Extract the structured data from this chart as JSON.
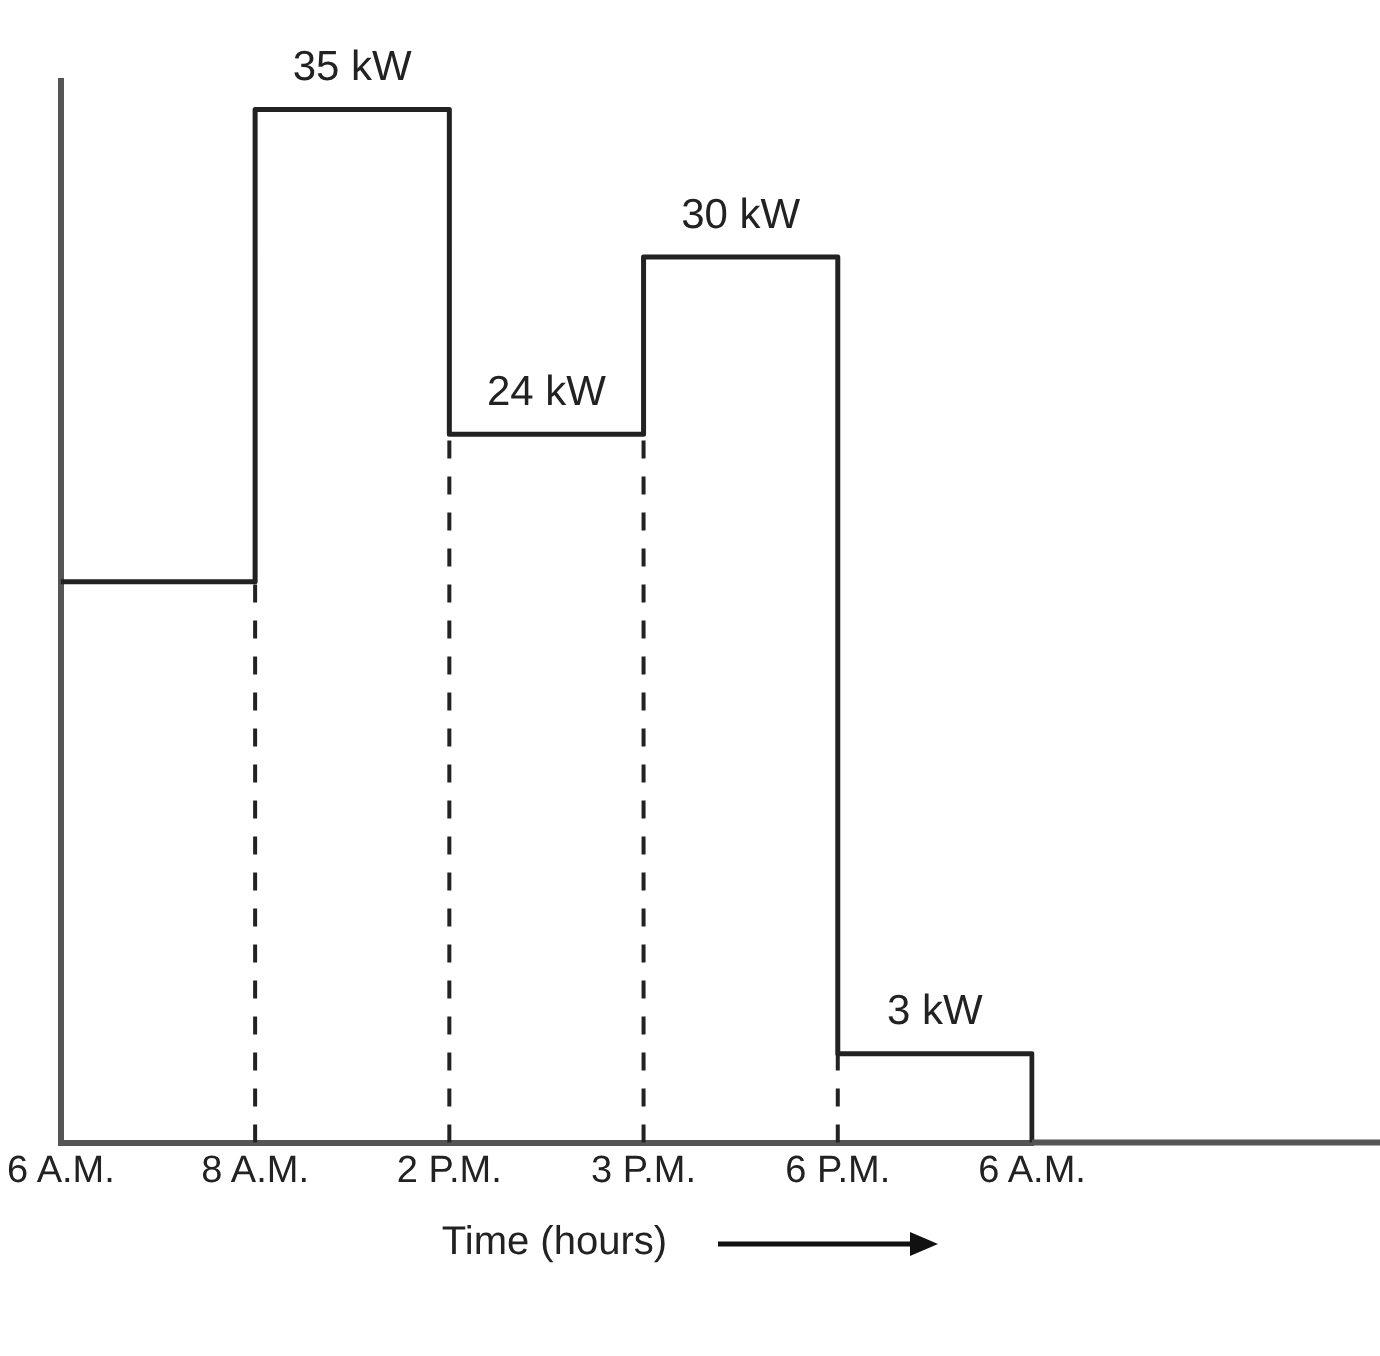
{
  "chart_data": {
    "type": "step",
    "xlabel": "Time (hours)",
    "categories": [
      "6 A.M.",
      "8 A.M.",
      "2 P.M.",
      "3 P.M.",
      "6 P.M.",
      "6 A.M."
    ],
    "values": [
      19,
      35,
      24,
      30,
      3,
      0
    ],
    "value_labels": [
      null,
      "35 kW",
      "24 kW",
      "30 kW",
      "3 kW",
      null
    ],
    "color": "#222222",
    "ylim": [
      0,
      36
    ],
    "tick_labels": "x",
    "grid": false,
    "legend": false
  }
}
